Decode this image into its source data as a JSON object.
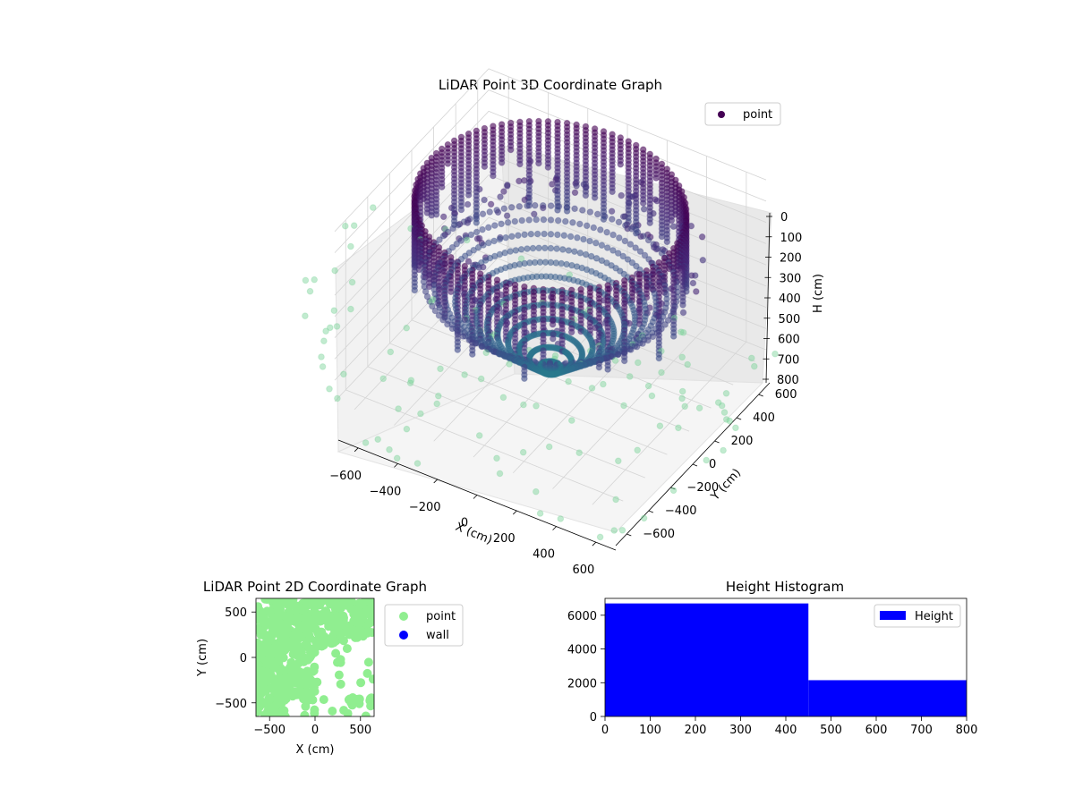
{
  "chart_data": [
    {
      "type": "scatter",
      "projection": "3d",
      "title": "LiDAR Point 3D Coordinate Graph",
      "xlabel": "X (cm)",
      "ylabel": "Y (cm)",
      "zlabel": "H (cm)",
      "xlim": [
        -700,
        700
      ],
      "ylim": [
        -700,
        700
      ],
      "zlim": [
        800,
        0
      ],
      "x_ticks": [
        "−600",
        "−400",
        "−200",
        "0",
        "200",
        "400",
        "600"
      ],
      "y_ticks": [
        "−600",
        "−400",
        "−200",
        "0",
        "200",
        "400",
        "600"
      ],
      "z_ticks": [
        "0",
        "100",
        "200",
        "300",
        "400",
        "500",
        "600",
        "700",
        "800"
      ],
      "z_inverted": true,
      "grid": true,
      "legend": {
        "placement": "top-right",
        "entries": [
          "point"
        ]
      },
      "series": [
        {
          "name": "point",
          "color_by": "height",
          "colormap": "viridis",
          "description_points": {
            "ring_radius": 600,
            "ring_height_range": [
              0,
              450
            ],
            "cone_apex": [
              0,
              0,
              800
            ],
            "floor_height": 800
          }
        }
      ],
      "colors": {
        "marker_dark": "#440154",
        "marker_mid": "#3b528b",
        "marker_light": "#5ec962"
      }
    },
    {
      "type": "scatter",
      "title": "LiDAR Point 2D Coordinate Graph",
      "xlabel": "X (cm)",
      "ylabel": "Y (cm)",
      "xlim": [
        -650,
        650
      ],
      "ylim": [
        -650,
        650
      ],
      "x_ticks": [
        "−500",
        "0",
        "500"
      ],
      "y_ticks": [
        "−500",
        "0",
        "500"
      ],
      "legend": {
        "placement": "outside-right",
        "entries": [
          "point",
          "wall"
        ]
      },
      "series": [
        {
          "name": "point",
          "color": "#90ee90"
        },
        {
          "name": "wall",
          "color": "#0000ff",
          "values": []
        }
      ]
    },
    {
      "type": "bar",
      "subtype": "histogram",
      "title": "Height Histogram",
      "xlim": [
        0,
        800
      ],
      "ylim": [
        0,
        7000
      ],
      "x_ticks": [
        "0",
        "100",
        "200",
        "300",
        "400",
        "500",
        "600",
        "700",
        "800"
      ],
      "y_ticks": [
        "0",
        "2000",
        "4000",
        "6000"
      ],
      "bins": [
        {
          "start": 0,
          "end": 450,
          "count": 6700
        },
        {
          "start": 450,
          "end": 800,
          "count": 2150
        }
      ],
      "legend": {
        "placement": "top-right",
        "entries": [
          "Height"
        ]
      },
      "series": [
        {
          "name": "Height",
          "color": "#0000ff"
        }
      ]
    }
  ]
}
